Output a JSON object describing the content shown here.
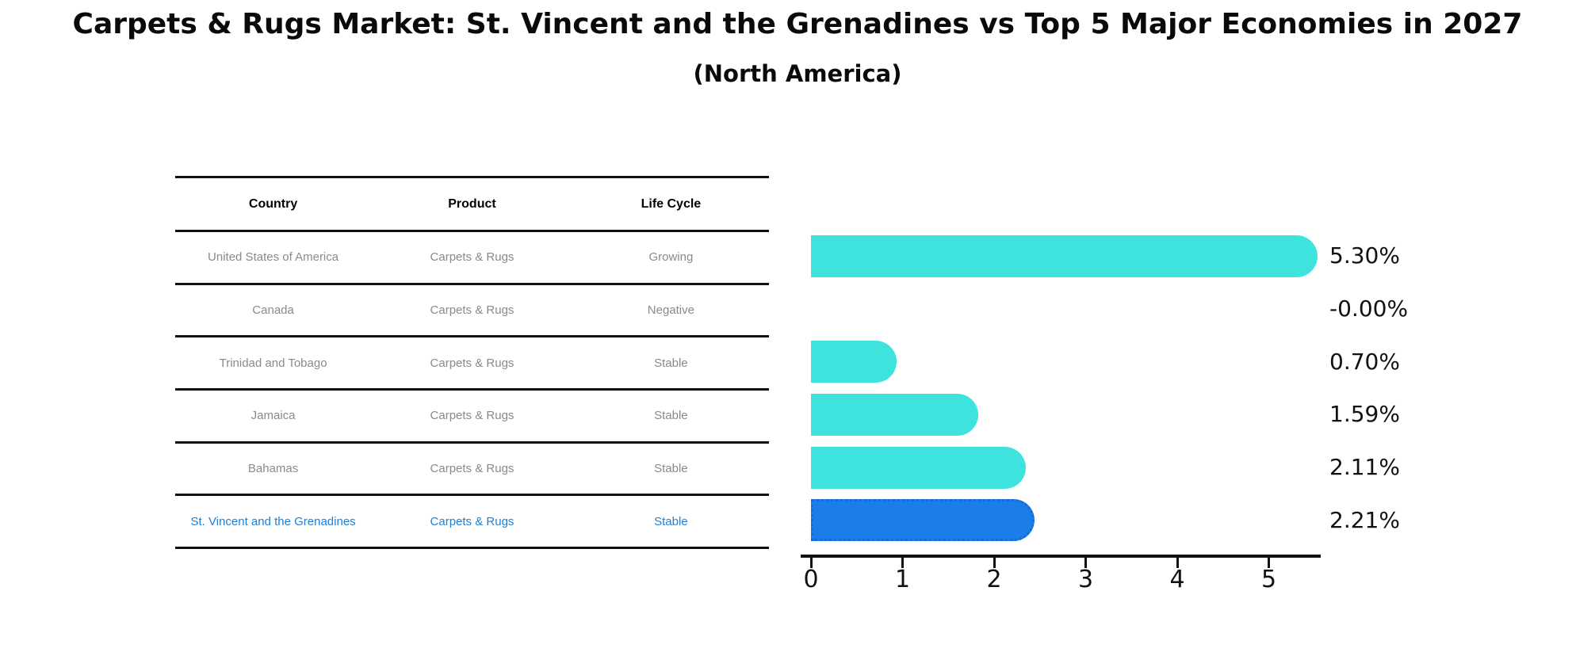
{
  "chart_data": {
    "type": "bar",
    "orientation": "horizontal",
    "title": "Carpets & Rugs Market: St. Vincent and the Grenadines vs Top 5 Major Economies in 2027",
    "subtitle": "(North America)",
    "categories": [
      "United States of America",
      "Canada",
      "Trinidad and Tobago",
      "Jamaica",
      "Bahamas",
      "St. Vincent and the Grenadines"
    ],
    "values": [
      5.3,
      -0.0,
      0.7,
      1.59,
      2.11,
      2.21
    ],
    "value_labels": [
      "5.30%",
      "-0.00%",
      "0.70%",
      "1.59%",
      "2.11%",
      "2.21%"
    ],
    "x_ticks": [
      0,
      1,
      2,
      3,
      4,
      5
    ],
    "xlim": [
      0,
      5.65
    ],
    "grid": false,
    "legend": "none",
    "bar_color": "#3FE3DD",
    "highlight_index": 5,
    "highlight_color": "#1B7EE8",
    "highlight_border_color": "#1668DD"
  },
  "table": {
    "headers": [
      "Country",
      "Product",
      "Life Cycle"
    ],
    "rows": [
      {
        "country": "United States of America",
        "product": "Carpets & Rugs",
        "life_cycle": "Growing",
        "highlight": false
      },
      {
        "country": "Canada",
        "product": "Carpets & Rugs",
        "life_cycle": "Negative",
        "highlight": false
      },
      {
        "country": "Trinidad and Tobago",
        "product": "Carpets & Rugs",
        "life_cycle": "Stable",
        "highlight": false
      },
      {
        "country": "Jamaica",
        "product": "Carpets & Rugs",
        "life_cycle": "Stable",
        "highlight": false
      },
      {
        "country": "Bahamas",
        "product": "Carpets & Rugs",
        "life_cycle": "Stable",
        "highlight": false
      },
      {
        "country": "St. Vincent and the Grenadines",
        "product": "Carpets & Rugs",
        "life_cycle": "Stable",
        "highlight": true
      }
    ]
  },
  "colors": {
    "highlight_text": "#1F7FD4",
    "muted_text": "#8a8a8a",
    "line": "#111111"
  }
}
